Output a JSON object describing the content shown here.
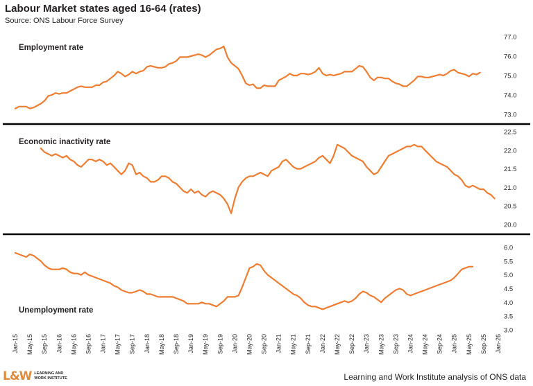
{
  "header": {
    "title": "Labour Market states aged 16-64 (rates)",
    "subtitle": "Source: ONS Labour Force Survey"
  },
  "footer": {
    "credit": "Learning and Work Institute analysis of ONS data",
    "logo_mark": "L&W",
    "logo_line1": "LEARNING AND",
    "logo_line2": "WORK INSTITUTE"
  },
  "colors": {
    "line": "#ee7d31",
    "divider": "#000000",
    "text": "#231f20"
  },
  "chart_data": {
    "type": "line",
    "x_tick_labels": [
      "Jan-15",
      "May-15",
      "Sep-15",
      "Jan-16",
      "May-16",
      "Sep-16",
      "Jan-17",
      "May-17",
      "Sep-17",
      "Jan-18",
      "May-18",
      "Sep-18",
      "Jan-19",
      "May-19",
      "Sep-19",
      "Jan-20",
      "May-20",
      "Sep-20",
      "Jan-21",
      "May-21",
      "Sep-21",
      "Jan-22",
      "May-22",
      "Sep-22",
      "Jan-23",
      "May-23",
      "Sep-23",
      "Jan-24",
      "May-24",
      "Sep-24",
      "Jan-25",
      "May-25",
      "Sep-25",
      "Jan-26"
    ],
    "panels": [
      {
        "label": "Employment rate",
        "ylim": [
          73.0,
          77.0
        ],
        "yticks": [
          "73.0",
          "74.0",
          "75.0",
          "76.0",
          "77.0"
        ],
        "first_month": "Jan-15",
        "values": [
          73.3,
          73.4,
          73.4,
          73.4,
          73.3,
          73.35,
          73.45,
          73.55,
          73.7,
          73.95,
          74.0,
          74.1,
          74.05,
          74.1,
          74.1,
          74.2,
          74.3,
          74.4,
          74.45,
          74.4,
          74.4,
          74.4,
          74.5,
          74.5,
          74.65,
          74.7,
          74.85,
          75.0,
          75.2,
          75.1,
          74.95,
          75.05,
          75.2,
          75.1,
          75.2,
          75.25,
          75.45,
          75.5,
          75.45,
          75.4,
          75.4,
          75.45,
          75.6,
          75.65,
          75.75,
          75.95,
          75.95,
          75.95,
          76.0,
          76.05,
          76.1,
          76.05,
          75.95,
          76.05,
          76.2,
          76.35,
          76.4,
          76.5,
          75.95,
          75.65,
          75.5,
          75.35,
          75.0,
          74.6,
          74.5,
          74.55,
          74.35,
          74.35,
          74.5,
          74.45,
          74.45,
          74.45,
          74.75,
          74.85,
          74.95,
          75.1,
          75.0,
          75.0,
          75.1,
          75.1,
          75.05,
          75.1,
          75.2,
          75.4,
          75.1,
          75.0,
          75.05,
          75.0,
          75.05,
          75.1,
          75.2,
          75.2,
          75.2,
          75.35,
          75.5,
          75.45,
          75.2,
          74.9,
          74.75,
          74.9,
          74.9,
          74.85,
          74.85,
          74.7,
          74.6,
          74.55,
          74.45,
          74.45,
          74.6,
          74.75,
          74.95,
          74.95,
          74.9,
          74.9,
          74.95,
          75.0,
          75.05,
          75.0,
          75.1,
          75.25,
          75.3,
          75.15,
          75.1,
          75.05,
          74.95,
          75.1,
          75.05,
          75.15
        ]
      },
      {
        "label": "Economic inactivity rate",
        "ylim": [
          20.0,
          22.5
        ],
        "yticks": [
          "20.0",
          "20.5",
          "21.0",
          "21.5",
          "22.0",
          "22.5"
        ],
        "first_month": "Aug-15",
        "values": [
          22.05,
          21.95,
          21.9,
          21.85,
          21.9,
          21.85,
          21.8,
          21.85,
          21.75,
          21.7,
          21.6,
          21.55,
          21.65,
          21.75,
          21.75,
          21.7,
          21.75,
          21.7,
          21.6,
          21.65,
          21.55,
          21.45,
          21.35,
          21.45,
          21.65,
          21.6,
          21.35,
          21.4,
          21.3,
          21.25,
          21.15,
          21.15,
          21.2,
          21.3,
          21.3,
          21.25,
          21.15,
          21.1,
          21.0,
          20.9,
          20.85,
          20.95,
          20.85,
          20.9,
          20.8,
          20.75,
          20.85,
          20.9,
          20.85,
          20.8,
          20.7,
          20.55,
          20.3,
          20.7,
          21.0,
          21.15,
          21.25,
          21.3,
          21.3,
          21.35,
          21.4,
          21.35,
          21.3,
          21.45,
          21.5,
          21.55,
          21.7,
          21.75,
          21.65,
          21.55,
          21.5,
          21.5,
          21.55,
          21.6,
          21.65,
          21.7,
          21.8,
          21.85,
          21.75,
          21.65,
          21.85,
          22.15,
          22.1,
          22.05,
          21.95,
          21.85,
          21.8,
          21.75,
          21.7,
          21.55,
          21.45,
          21.35,
          21.4,
          21.55,
          21.7,
          21.85,
          21.9,
          21.95,
          22.0,
          22.05,
          22.1,
          22.1,
          22.15,
          22.1,
          22.1,
          22.0,
          21.9,
          21.8,
          21.7,
          21.65,
          21.6,
          21.55,
          21.45,
          21.35,
          21.3,
          21.2,
          21.05,
          21.0,
          21.05,
          21.0,
          20.95,
          20.95,
          20.85,
          20.8,
          20.7
        ]
      },
      {
        "label": "Unemployment rate",
        "ylim": [
          3.0,
          6.0
        ],
        "yticks": [
          "3.0",
          "3.5",
          "4.0",
          "4.5",
          "5.0",
          "5.5",
          "6.0"
        ],
        "first_month": "Jan-15",
        "values": [
          5.8,
          5.75,
          5.7,
          5.65,
          5.75,
          5.7,
          5.6,
          5.5,
          5.35,
          5.25,
          5.2,
          5.2,
          5.2,
          5.25,
          5.2,
          5.1,
          5.05,
          5.05,
          5.0,
          5.1,
          5.0,
          4.95,
          4.9,
          4.85,
          4.8,
          4.75,
          4.7,
          4.6,
          4.55,
          4.45,
          4.4,
          4.35,
          4.35,
          4.4,
          4.45,
          4.4,
          4.3,
          4.3,
          4.25,
          4.2,
          4.2,
          4.2,
          4.2,
          4.2,
          4.15,
          4.1,
          4.05,
          3.95,
          3.95,
          3.95,
          3.95,
          4.0,
          3.95,
          3.95,
          3.9,
          3.85,
          3.95,
          4.05,
          4.2,
          4.2,
          4.2,
          4.25,
          4.55,
          4.9,
          5.25,
          5.3,
          5.4,
          5.35,
          5.15,
          5.0,
          4.9,
          4.8,
          4.7,
          4.6,
          4.5,
          4.4,
          4.3,
          4.25,
          4.15,
          4.0,
          3.9,
          3.85,
          3.85,
          3.8,
          3.75,
          3.8,
          3.85,
          3.9,
          3.95,
          4.0,
          4.05,
          4.0,
          4.05,
          4.15,
          4.3,
          4.4,
          4.35,
          4.25,
          4.2,
          4.1,
          4.0,
          4.15,
          4.25,
          4.35,
          4.45,
          4.5,
          4.45,
          4.3,
          4.25,
          4.3,
          4.35,
          4.4,
          4.45,
          4.5,
          4.55,
          4.6,
          4.65,
          4.7,
          4.75,
          4.8,
          4.9,
          5.05,
          5.2,
          5.25,
          5.3,
          5.3
        ]
      }
    ]
  }
}
